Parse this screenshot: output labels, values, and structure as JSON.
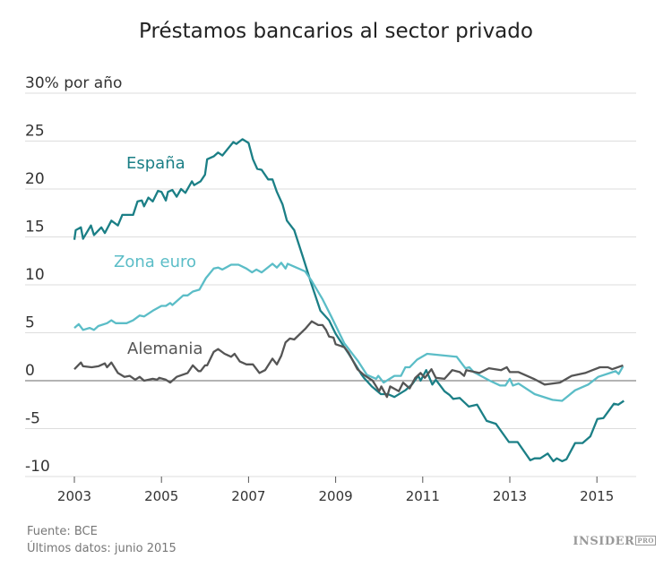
{
  "title": "Préstamos bancarios al sector privado",
  "footer": {
    "source": "Fuente: BCE",
    "latest": "Últimos datos: junio 2015",
    "logo": "INSIDER",
    "logo_badge": "PRO"
  },
  "chart_data": {
    "type": "line",
    "title": "Préstamos bancarios al sector privado",
    "ylabel": "% por año",
    "ylim": [
      -10,
      30
    ],
    "xlim": [
      2003,
      2015.7
    ],
    "yticks": [
      -10,
      -5,
      0,
      5,
      10,
      15,
      20,
      25,
      30
    ],
    "ytick_labels": [
      "-10",
      "-5",
      "0",
      "5",
      "10",
      "15",
      "20",
      "25",
      "30% por año"
    ],
    "xticks": [
      2003,
      2005,
      2007,
      2009,
      2011,
      2013,
      2015
    ],
    "xtick_labels": [
      "2003",
      "2005",
      "2007",
      "2009",
      "2011",
      "2013",
      "2015"
    ],
    "grid": true,
    "series": [
      {
        "name": "España",
        "color": "#1b7f86",
        "points": [
          [
            2003.0,
            14.7
          ],
          [
            2003.03,
            15.7
          ],
          [
            2003.15,
            16.0
          ],
          [
            2003.2,
            14.8
          ],
          [
            2003.38,
            16.2
          ],
          [
            2003.45,
            15.2
          ],
          [
            2003.62,
            16.0
          ],
          [
            2003.7,
            15.4
          ],
          [
            2003.85,
            16.7
          ],
          [
            2004.0,
            16.2
          ],
          [
            2004.1,
            17.3
          ],
          [
            2004.35,
            17.3
          ],
          [
            2004.45,
            18.7
          ],
          [
            2004.55,
            18.8
          ],
          [
            2004.6,
            18.2
          ],
          [
            2004.7,
            19.1
          ],
          [
            2004.8,
            18.7
          ],
          [
            2004.92,
            19.8
          ],
          [
            2005.0,
            19.7
          ],
          [
            2005.1,
            18.8
          ],
          [
            2005.15,
            19.7
          ],
          [
            2005.25,
            19.9
          ],
          [
            2005.35,
            19.2
          ],
          [
            2005.45,
            20.0
          ],
          [
            2005.55,
            19.6
          ],
          [
            2005.7,
            20.8
          ],
          [
            2005.75,
            20.4
          ],
          [
            2005.9,
            20.8
          ],
          [
            2006.0,
            21.5
          ],
          [
            2006.05,
            23.1
          ],
          [
            2006.2,
            23.4
          ],
          [
            2006.3,
            23.8
          ],
          [
            2006.4,
            23.5
          ],
          [
            2006.65,
            24.9
          ],
          [
            2006.72,
            24.7
          ],
          [
            2006.86,
            25.2
          ],
          [
            2007.0,
            24.8
          ],
          [
            2007.1,
            23.1
          ],
          [
            2007.2,
            22.1
          ],
          [
            2007.3,
            22.0
          ],
          [
            2007.45,
            21.0
          ],
          [
            2007.55,
            21.0
          ],
          [
            2007.65,
            19.7
          ],
          [
            2007.78,
            18.4
          ],
          [
            2007.88,
            16.7
          ],
          [
            2008.05,
            15.7
          ],
          [
            2008.25,
            12.9
          ],
          [
            2008.45,
            10.0
          ],
          [
            2008.65,
            7.3
          ],
          [
            2008.85,
            6.3
          ],
          [
            2009.0,
            4.9
          ],
          [
            2009.2,
            3.5
          ],
          [
            2009.3,
            2.8
          ],
          [
            2009.6,
            0.6
          ],
          [
            2009.65,
            0.3
          ],
          [
            2009.83,
            -0.6
          ],
          [
            2010.04,
            -1.4
          ],
          [
            2010.2,
            -1.4
          ],
          [
            2010.35,
            -1.7
          ],
          [
            2010.6,
            -1.0
          ],
          [
            2010.75,
            -0.4
          ],
          [
            2010.9,
            0.5
          ],
          [
            2010.95,
            0.0
          ],
          [
            2011.08,
            1.1
          ],
          [
            2011.22,
            -0.4
          ],
          [
            2011.3,
            0.1
          ],
          [
            2011.5,
            -1.1
          ],
          [
            2011.62,
            -1.5
          ],
          [
            2011.7,
            -1.9
          ],
          [
            2011.85,
            -1.8
          ],
          [
            2012.06,
            -2.7
          ],
          [
            2012.25,
            -2.5
          ],
          [
            2012.47,
            -4.2
          ],
          [
            2012.68,
            -4.5
          ],
          [
            2012.98,
            -6.4
          ],
          [
            2013.18,
            -6.4
          ],
          [
            2013.47,
            -8.3
          ],
          [
            2013.57,
            -8.1
          ],
          [
            2013.7,
            -8.1
          ],
          [
            2013.87,
            -7.6
          ],
          [
            2014.0,
            -8.4
          ],
          [
            2014.08,
            -8.1
          ],
          [
            2014.2,
            -8.4
          ],
          [
            2014.3,
            -8.2
          ],
          [
            2014.5,
            -6.5
          ],
          [
            2014.67,
            -6.5
          ],
          [
            2014.85,
            -5.8
          ],
          [
            2015.01,
            -4.0
          ],
          [
            2015.15,
            -3.9
          ],
          [
            2015.39,
            -2.4
          ],
          [
            2015.49,
            -2.5
          ],
          [
            2015.62,
            -2.1
          ]
        ]
      },
      {
        "name": "Zona euro",
        "color": "#5bbdc7",
        "points": [
          [
            2003.0,
            5.5
          ],
          [
            2003.1,
            5.9
          ],
          [
            2003.2,
            5.3
          ],
          [
            2003.35,
            5.5
          ],
          [
            2003.45,
            5.3
          ],
          [
            2003.55,
            5.7
          ],
          [
            2003.75,
            6.0
          ],
          [
            2003.85,
            6.3
          ],
          [
            2003.95,
            6.0
          ],
          [
            2004.2,
            6.0
          ],
          [
            2004.35,
            6.3
          ],
          [
            2004.5,
            6.8
          ],
          [
            2004.6,
            6.7
          ],
          [
            2004.8,
            7.3
          ],
          [
            2005.0,
            7.8
          ],
          [
            2005.1,
            7.8
          ],
          [
            2005.2,
            8.1
          ],
          [
            2005.25,
            7.9
          ],
          [
            2005.5,
            8.9
          ],
          [
            2005.6,
            8.9
          ],
          [
            2005.72,
            9.3
          ],
          [
            2005.87,
            9.5
          ],
          [
            2006.02,
            10.7
          ],
          [
            2006.2,
            11.7
          ],
          [
            2006.3,
            11.8
          ],
          [
            2006.4,
            11.6
          ],
          [
            2006.6,
            12.1
          ],
          [
            2006.77,
            12.1
          ],
          [
            2006.95,
            11.7
          ],
          [
            2007.08,
            11.3
          ],
          [
            2007.18,
            11.6
          ],
          [
            2007.3,
            11.3
          ],
          [
            2007.55,
            12.2
          ],
          [
            2007.65,
            11.8
          ],
          [
            2007.75,
            12.3
          ],
          [
            2007.85,
            11.7
          ],
          [
            2007.9,
            12.2
          ],
          [
            2008.05,
            11.9
          ],
          [
            2008.3,
            11.4
          ],
          [
            2008.45,
            10.4
          ],
          [
            2008.7,
            8.5
          ],
          [
            2008.9,
            6.7
          ],
          [
            2009.2,
            3.9
          ],
          [
            2009.52,
            2.0
          ],
          [
            2009.72,
            0.6
          ],
          [
            2009.93,
            0.2
          ],
          [
            2009.98,
            0.5
          ],
          [
            2010.1,
            -0.2
          ],
          [
            2010.35,
            0.5
          ],
          [
            2010.5,
            0.5
          ],
          [
            2010.6,
            1.4
          ],
          [
            2010.7,
            1.4
          ],
          [
            2010.87,
            2.2
          ],
          [
            2011.1,
            2.8
          ],
          [
            2011.78,
            2.5
          ],
          [
            2011.98,
            1.3
          ],
          [
            2012.07,
            1.4
          ],
          [
            2012.17,
            0.9
          ],
          [
            2012.54,
            0.0
          ],
          [
            2012.78,
            -0.5
          ],
          [
            2012.9,
            -0.5
          ],
          [
            2013.0,
            0.2
          ],
          [
            2013.07,
            -0.5
          ],
          [
            2013.2,
            -0.3
          ],
          [
            2013.57,
            -1.4
          ],
          [
            2013.98,
            -2.0
          ],
          [
            2014.2,
            -2.1
          ],
          [
            2014.5,
            -1.0
          ],
          [
            2014.8,
            -0.4
          ],
          [
            2015.03,
            0.4
          ],
          [
            2015.3,
            0.8
          ],
          [
            2015.43,
            1.0
          ],
          [
            2015.5,
            0.7
          ],
          [
            2015.6,
            1.5
          ]
        ]
      },
      {
        "name": "Alemania",
        "color": "#555555",
        "points": [
          [
            2003.0,
            1.2
          ],
          [
            2003.15,
            1.9
          ],
          [
            2003.2,
            1.5
          ],
          [
            2003.4,
            1.4
          ],
          [
            2003.55,
            1.5
          ],
          [
            2003.7,
            1.8
          ],
          [
            2003.75,
            1.4
          ],
          [
            2003.85,
            1.9
          ],
          [
            2004.0,
            0.8
          ],
          [
            2004.15,
            0.4
          ],
          [
            2004.27,
            0.5
          ],
          [
            2004.4,
            0.1
          ],
          [
            2004.5,
            0.4
          ],
          [
            2004.6,
            0.0
          ],
          [
            2004.8,
            0.2
          ],
          [
            2004.9,
            0.1
          ],
          [
            2004.95,
            0.3
          ],
          [
            2005.1,
            0.1
          ],
          [
            2005.2,
            -0.2
          ],
          [
            2005.35,
            0.4
          ],
          [
            2005.6,
            0.8
          ],
          [
            2005.72,
            1.6
          ],
          [
            2005.85,
            1.0
          ],
          [
            2005.9,
            1.0
          ],
          [
            2006.0,
            1.6
          ],
          [
            2006.05,
            1.6
          ],
          [
            2006.2,
            3.0
          ],
          [
            2006.3,
            3.3
          ],
          [
            2006.45,
            2.8
          ],
          [
            2006.6,
            2.5
          ],
          [
            2006.68,
            2.8
          ],
          [
            2006.8,
            2.0
          ],
          [
            2006.95,
            1.7
          ],
          [
            2007.1,
            1.7
          ],
          [
            2007.25,
            0.8
          ],
          [
            2007.38,
            1.1
          ],
          [
            2007.55,
            2.3
          ],
          [
            2007.65,
            1.7
          ],
          [
            2007.75,
            2.6
          ],
          [
            2007.85,
            4.0
          ],
          [
            2007.95,
            4.4
          ],
          [
            2008.05,
            4.3
          ],
          [
            2008.3,
            5.4
          ],
          [
            2008.45,
            6.2
          ],
          [
            2008.6,
            5.8
          ],
          [
            2008.7,
            5.8
          ],
          [
            2008.78,
            5.3
          ],
          [
            2008.85,
            4.6
          ],
          [
            2008.95,
            4.5
          ],
          [
            2009.0,
            3.8
          ],
          [
            2009.2,
            3.5
          ],
          [
            2009.3,
            2.9
          ],
          [
            2009.5,
            1.2
          ],
          [
            2009.65,
            0.6
          ],
          [
            2009.85,
            0.0
          ],
          [
            2010.0,
            -1.1
          ],
          [
            2010.05,
            -0.6
          ],
          [
            2010.18,
            -1.7
          ],
          [
            2010.25,
            -0.6
          ],
          [
            2010.45,
            -1.1
          ],
          [
            2010.55,
            -0.2
          ],
          [
            2010.7,
            -0.8
          ],
          [
            2010.83,
            0.3
          ],
          [
            2010.95,
            0.8
          ],
          [
            2011.05,
            0.3
          ],
          [
            2011.2,
            1.2
          ],
          [
            2011.3,
            0.3
          ],
          [
            2011.5,
            0.2
          ],
          [
            2011.68,
            1.1
          ],
          [
            2011.85,
            0.9
          ],
          [
            2011.95,
            0.5
          ],
          [
            2012.0,
            1.1
          ],
          [
            2012.3,
            0.8
          ],
          [
            2012.52,
            1.3
          ],
          [
            2012.8,
            1.1
          ],
          [
            2012.93,
            1.4
          ],
          [
            2013.0,
            0.9
          ],
          [
            2013.2,
            0.9
          ],
          [
            2013.55,
            0.2
          ],
          [
            2013.8,
            -0.4
          ],
          [
            2014.15,
            -0.2
          ],
          [
            2014.42,
            0.5
          ],
          [
            2014.73,
            0.8
          ],
          [
            2014.9,
            1.1
          ],
          [
            2015.07,
            1.4
          ],
          [
            2015.25,
            1.4
          ],
          [
            2015.35,
            1.2
          ],
          [
            2015.6,
            1.6
          ]
        ]
      }
    ]
  }
}
